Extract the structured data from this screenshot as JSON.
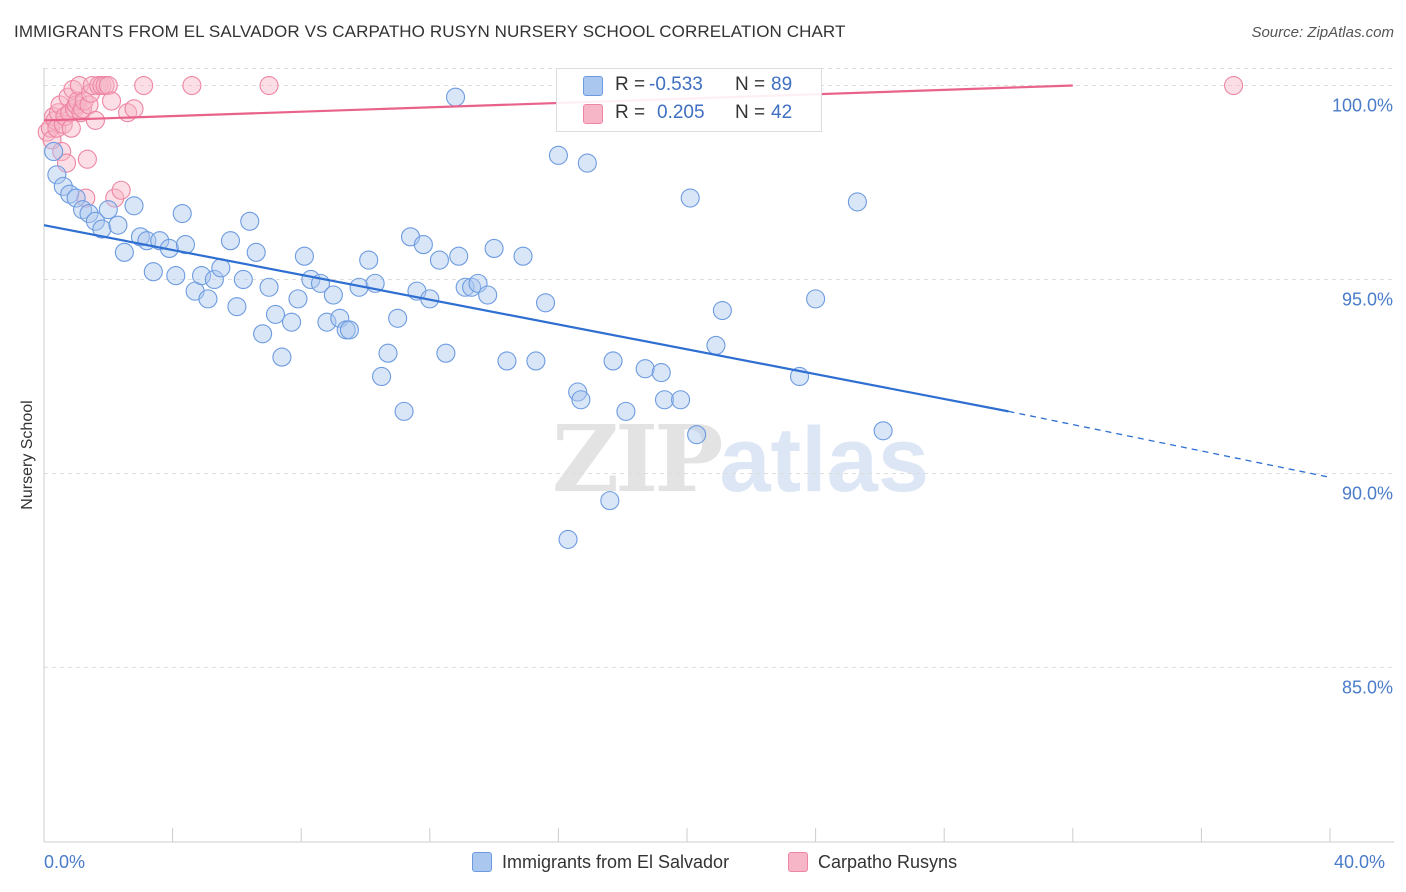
{
  "title": "IMMIGRANTS FROM EL SALVADOR VS CARPATHO RUSYN NURSERY SCHOOL CORRELATION CHART",
  "source": "Source: ZipAtlas.com",
  "watermark": {
    "part1": "ZIP",
    "part2": "atlas"
  },
  "colors": {
    "blue_fill": "#aac7ef",
    "blue_stroke": "#6d9be0",
    "blue_line": "#2e6fd1",
    "pink_fill": "#f7b6c8",
    "pink_stroke": "#ee86a3",
    "pink_line": "#e8628a",
    "grid": "#dddddd",
    "axis": "#cccccc",
    "tick_text": "#4a7cc9"
  },
  "legend": {
    "rows": [
      {
        "r_label": "R =",
        "r_value": "-0.533",
        "n_label": "N =",
        "n_value": "89",
        "color": "blue"
      },
      {
        "r_label": "R =",
        "r_value": "0.205",
        "n_label": "N =",
        "n_value": "42",
        "color": "pink"
      }
    ]
  },
  "chart_data": {
    "type": "scatter",
    "title": "IMMIGRANTS FROM EL SALVADOR VS CARPATHO RUSYN NURSERY SCHOOL CORRELATION CHART",
    "xlabel": "",
    "ylabel": "Nursery School",
    "xlim": [
      0,
      40
    ],
    "ylim": [
      80.5,
      100.4
    ],
    "x_tick_labels": [
      "0.0%",
      "40.0%"
    ],
    "y_ticks": [
      {
        "value": 100,
        "label": "100.0%"
      },
      {
        "value": 95,
        "label": "95.0%"
      },
      {
        "value": 90,
        "label": "90.0%"
      },
      {
        "value": 85,
        "label": "85.0%"
      }
    ],
    "grid": true,
    "legend_position": "top-center",
    "series": [
      {
        "name": "Immigrants from El Salvador",
        "color": "blue",
        "trend": {
          "x": [
            0,
            30
          ],
          "y": [
            96.4,
            91.6
          ],
          "dashed_to": [
            40,
            89.9
          ]
        },
        "points": [
          [
            0.3,
            98.3
          ],
          [
            0.4,
            97.7
          ],
          [
            0.6,
            97.4
          ],
          [
            0.8,
            97.2
          ],
          [
            1.0,
            97.1
          ],
          [
            1.2,
            96.8
          ],
          [
            1.4,
            96.7
          ],
          [
            1.6,
            96.5
          ],
          [
            1.8,
            96.3
          ],
          [
            2.0,
            96.8
          ],
          [
            2.3,
            96.4
          ],
          [
            2.5,
            95.7
          ],
          [
            2.8,
            96.9
          ],
          [
            3.0,
            96.1
          ],
          [
            3.2,
            96.0
          ],
          [
            3.4,
            95.2
          ],
          [
            3.6,
            96.0
          ],
          [
            3.9,
            95.8
          ],
          [
            4.1,
            95.1
          ],
          [
            4.3,
            96.7
          ],
          [
            4.4,
            95.9
          ],
          [
            4.7,
            94.7
          ],
          [
            4.9,
            95.1
          ],
          [
            5.1,
            94.5
          ],
          [
            5.3,
            95.0
          ],
          [
            5.5,
            95.3
          ],
          [
            5.8,
            96.0
          ],
          [
            6.0,
            94.3
          ],
          [
            6.2,
            95.0
          ],
          [
            6.4,
            96.5
          ],
          [
            6.6,
            95.7
          ],
          [
            6.8,
            93.6
          ],
          [
            7.0,
            94.8
          ],
          [
            7.2,
            94.1
          ],
          [
            7.4,
            93.0
          ],
          [
            7.7,
            93.9
          ],
          [
            7.9,
            94.5
          ],
          [
            8.1,
            95.6
          ],
          [
            8.3,
            95.0
          ],
          [
            8.6,
            94.9
          ],
          [
            8.8,
            93.9
          ],
          [
            9.0,
            94.6
          ],
          [
            9.2,
            94.0
          ],
          [
            9.4,
            93.7
          ],
          [
            9.5,
            93.7
          ],
          [
            9.8,
            94.8
          ],
          [
            10.1,
            95.5
          ],
          [
            10.3,
            94.9
          ],
          [
            10.5,
            92.5
          ],
          [
            10.7,
            93.1
          ],
          [
            11.0,
            94.0
          ],
          [
            11.2,
            91.6
          ],
          [
            11.4,
            96.1
          ],
          [
            11.6,
            94.7
          ],
          [
            11.8,
            95.9
          ],
          [
            12.0,
            94.5
          ],
          [
            12.3,
            95.5
          ],
          [
            12.5,
            93.1
          ],
          [
            12.8,
            99.7
          ],
          [
            12.9,
            95.6
          ],
          [
            13.1,
            94.8
          ],
          [
            13.3,
            94.8
          ],
          [
            13.5,
            94.9
          ],
          [
            13.8,
            94.6
          ],
          [
            14.0,
            95.8
          ],
          [
            14.4,
            92.9
          ],
          [
            14.9,
            95.6
          ],
          [
            15.3,
            92.9
          ],
          [
            15.6,
            94.4
          ],
          [
            16.0,
            98.2
          ],
          [
            16.3,
            88.3
          ],
          [
            16.6,
            92.1
          ],
          [
            16.7,
            91.9
          ],
          [
            16.9,
            98.0
          ],
          [
            17.6,
            89.3
          ],
          [
            17.7,
            92.9
          ],
          [
            18.1,
            91.6
          ],
          [
            18.7,
            92.7
          ],
          [
            19.2,
            92.6
          ],
          [
            19.3,
            91.9
          ],
          [
            19.8,
            91.9
          ],
          [
            20.1,
            97.1
          ],
          [
            20.3,
            91.0
          ],
          [
            20.9,
            93.3
          ],
          [
            21.1,
            94.2
          ],
          [
            23.5,
            92.5
          ],
          [
            24.0,
            94.5
          ],
          [
            25.3,
            97.0
          ],
          [
            26.1,
            91.1
          ]
        ]
      },
      {
        "name": "Carpatho Rusyns",
        "color": "pink",
        "trend": {
          "x": [
            0,
            32
          ],
          "y": [
            99.1,
            100.0
          ]
        },
        "points": [
          [
            0.1,
            98.8
          ],
          [
            0.2,
            98.9
          ],
          [
            0.25,
            98.6
          ],
          [
            0.3,
            99.2
          ],
          [
            0.35,
            99.1
          ],
          [
            0.4,
            98.9
          ],
          [
            0.45,
            99.3
          ],
          [
            0.5,
            99.5
          ],
          [
            0.55,
            98.3
          ],
          [
            0.6,
            99.0
          ],
          [
            0.65,
            99.2
          ],
          [
            0.7,
            98.0
          ],
          [
            0.75,
            99.7
          ],
          [
            0.8,
            99.3
          ],
          [
            0.85,
            98.9
          ],
          [
            0.9,
            99.9
          ],
          [
            0.95,
            99.4
          ],
          [
            1.0,
            99.5
          ],
          [
            1.05,
            99.6
          ],
          [
            1.1,
            100.0
          ],
          [
            1.15,
            99.3
          ],
          [
            1.2,
            99.4
          ],
          [
            1.25,
            99.6
          ],
          [
            1.3,
            97.1
          ],
          [
            1.35,
            98.1
          ],
          [
            1.4,
            99.5
          ],
          [
            1.45,
            99.8
          ],
          [
            1.5,
            100.0
          ],
          [
            1.6,
            99.1
          ],
          [
            1.7,
            100.0
          ],
          [
            1.8,
            100.0
          ],
          [
            1.9,
            100.0
          ],
          [
            2.0,
            100.0
          ],
          [
            2.1,
            99.6
          ],
          [
            2.2,
            97.1
          ],
          [
            2.4,
            97.3
          ],
          [
            2.6,
            99.3
          ],
          [
            2.8,
            99.4
          ],
          [
            3.1,
            100.0
          ],
          [
            4.6,
            100.0
          ],
          [
            7.0,
            100.0
          ],
          [
            37.0,
            100.0
          ]
        ]
      }
    ]
  },
  "bottom_legend": [
    {
      "label": "Immigrants from El Salvador",
      "color": "blue"
    },
    {
      "label": "Carpatho Rusyns",
      "color": "pink"
    }
  ]
}
